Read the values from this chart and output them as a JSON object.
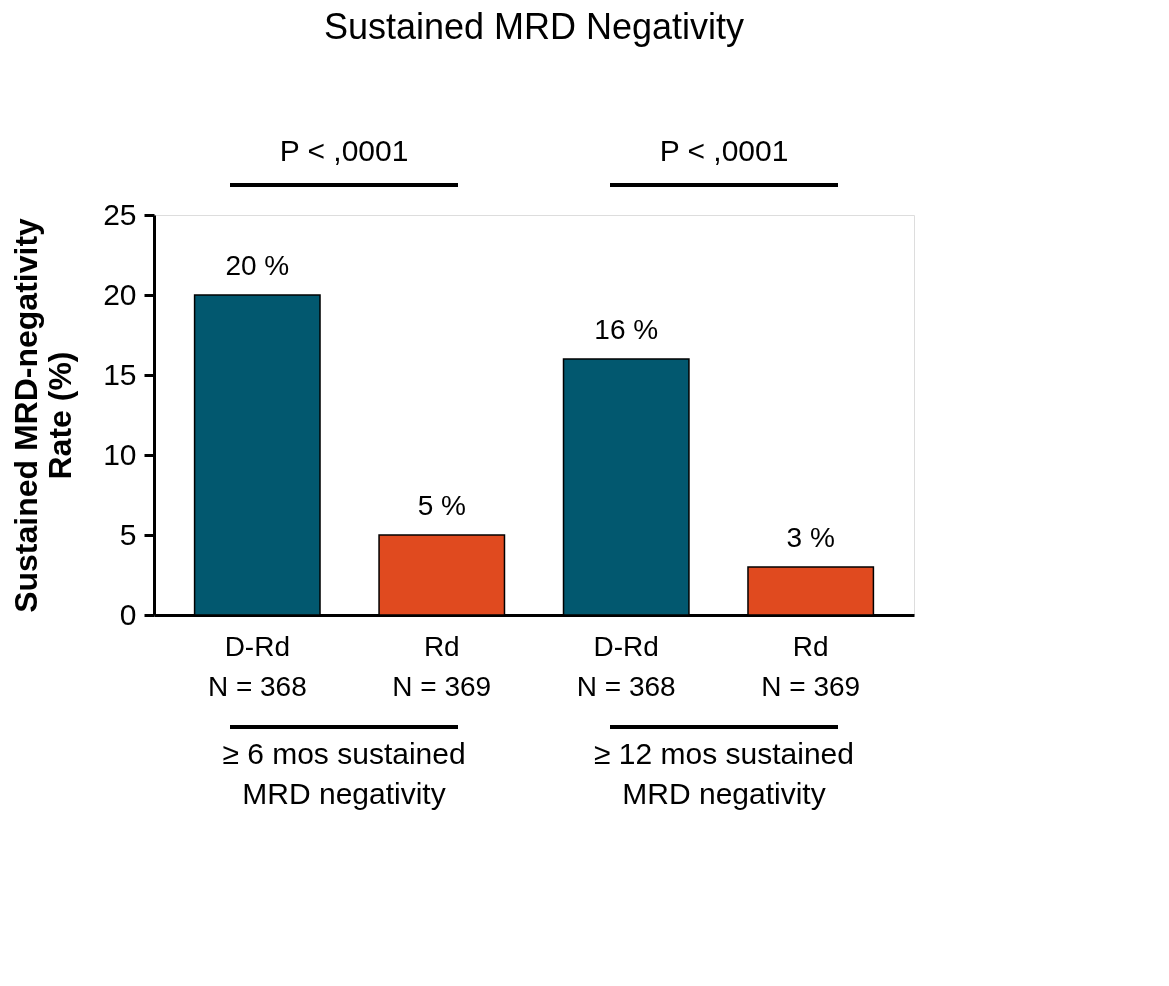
{
  "chart_data": {
    "type": "bar",
    "title": "Sustained MRD Negativity",
    "ylabel": "Sustained MRD-negativity\nRate (%)",
    "categories": [
      "D-Rd\nN = 368",
      "Rd\nN = 369",
      "D-Rd\nN = 368",
      "Rd\nN = 369"
    ],
    "values": [
      20,
      5,
      16,
      3
    ],
    "colors": [
      "#02586f",
      "#e04a1f",
      "#02586f",
      "#e04a1f"
    ],
    "value_labels": [
      "20 %",
      "5 %",
      "16 %",
      "3 %"
    ],
    "ylim": [
      0,
      25
    ],
    "yticks": [
      0,
      5,
      10,
      15,
      20,
      25
    ],
    "annotations": [
      "P < ,0001",
      "P < ,0001",
      "≥ 6 mos sustained\nMRD negativity",
      "≥ 12 mos sustained\nMRD negativity"
    ]
  }
}
